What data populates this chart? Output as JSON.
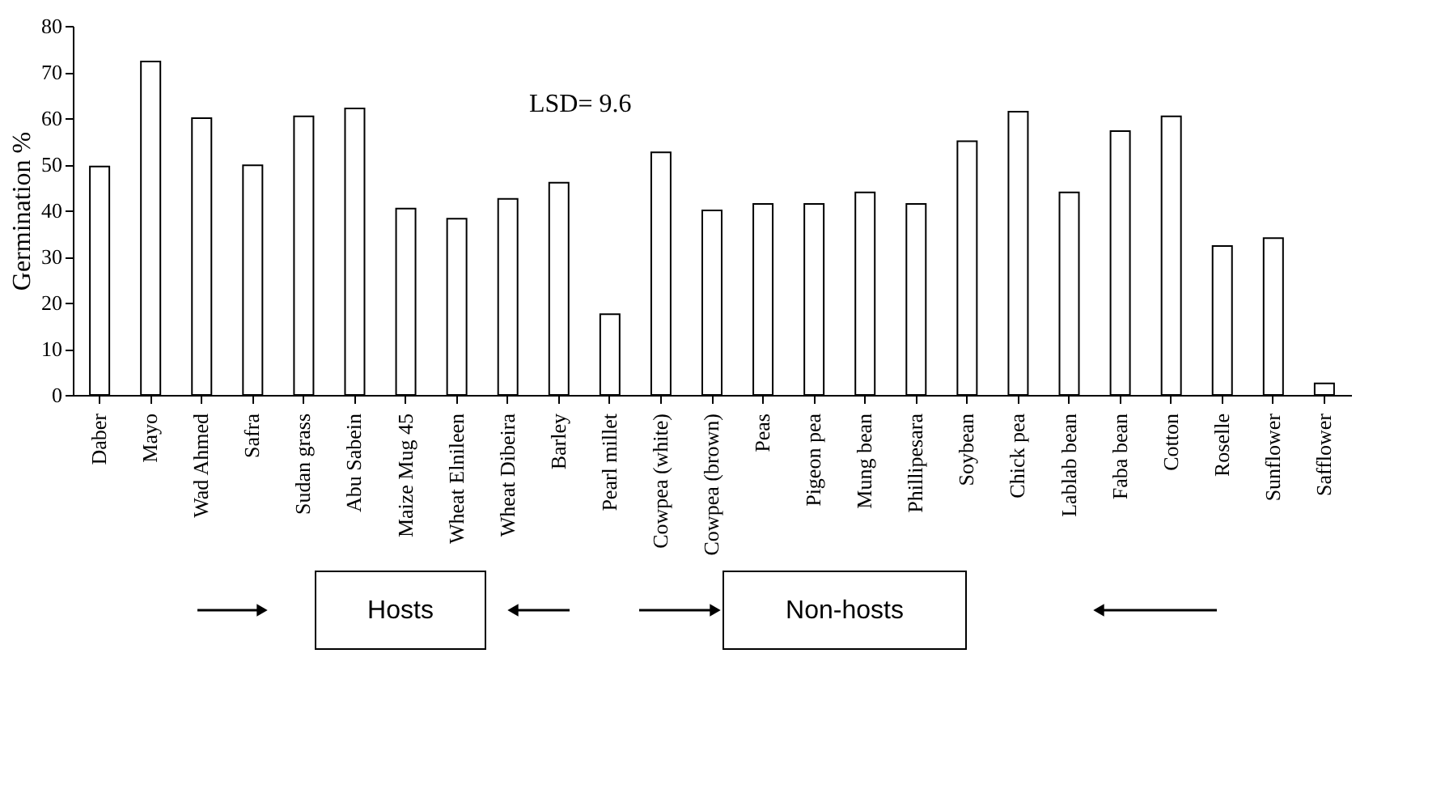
{
  "chart_data": {
    "type": "bar",
    "ylabel": "Germination %",
    "categories": [
      "Daber",
      "Mayo",
      "Wad Ahmed",
      "Safra",
      "Sudan grass",
      "Abu Sabein",
      "Maize Mug 45",
      "Wheat Elnileen",
      "Wheat Dibeira",
      "Barley",
      "Pearl millet",
      "Cowpea (white)",
      "Cowpea (brown)",
      "Peas",
      "Pigeon pea",
      "Mung bean",
      "Phillipesara",
      "Soybean",
      "Chick pea",
      "Lablab bean",
      "Faba bean",
      "Cotton",
      "Roselle",
      "Sunflower",
      "Safflower"
    ],
    "values": [
      49.5,
      72.3,
      60,
      49.8,
      60.4,
      62.1,
      40.4,
      38.2,
      42.5,
      46,
      17.5,
      52.6,
      40,
      41.4,
      41.4,
      43.9,
      41.4,
      55,
      61.4,
      43.9,
      57.2,
      60.4,
      32.3,
      34,
      2.5
    ],
    "color": "#ffffff",
    "ylim": [
      0,
      80
    ],
    "yticks": [
      0,
      10,
      20,
      30,
      40,
      50,
      60,
      70,
      80
    ],
    "grid": false,
    "annotations": [
      "LSD= 9.6",
      "Hosts",
      "Non-hosts"
    ]
  }
}
